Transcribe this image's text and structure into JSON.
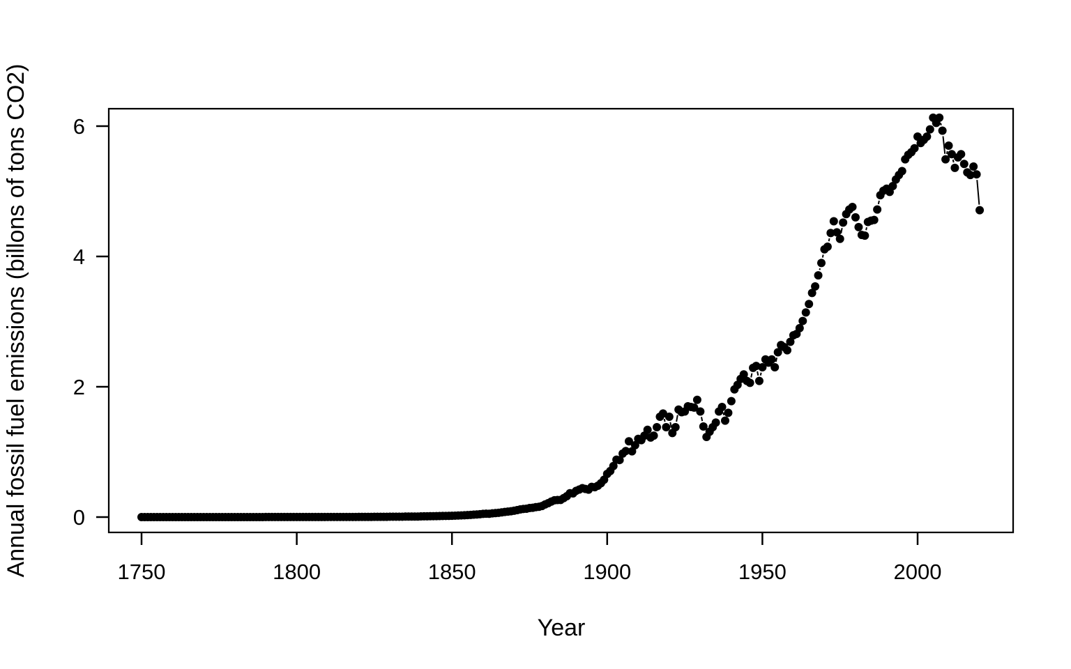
{
  "chart_data": {
    "type": "scatter",
    "style": "points-connected-b",
    "title": "",
    "xlabel": "Year",
    "ylabel": "Annual fossil fuel emissions (billons of tons CO2)",
    "x_ticks": [
      1750,
      1800,
      1850,
      1900,
      1950,
      2000
    ],
    "y_ticks": [
      0,
      2,
      4,
      6
    ],
    "xlim": [
      1739,
      2031
    ],
    "ylim": [
      -0.24,
      6.27
    ],
    "grid": false,
    "legend": "none",
    "point_color": "#000000",
    "background_color": "#ffffff",
    "x_start_year": 1750,
    "x_step": 1,
    "values": [
      0,
      0,
      0,
      0,
      0,
      0,
      0,
      0,
      0,
      0,
      0,
      0,
      0,
      0,
      0,
      0,
      0,
      0,
      0,
      0,
      0,
      0,
      0,
      0,
      0,
      0,
      0,
      0,
      0,
      0,
      0,
      0,
      0,
      0,
      0,
      0,
      0,
      0,
      0,
      0,
      0.001,
      0.001,
      0.001,
      0.001,
      0.001,
      0.001,
      0.001,
      0.001,
      0.001,
      0.001,
      0.001,
      0.001,
      0.001,
      0.001,
      0.001,
      0.001,
      0.001,
      0.001,
      0.001,
      0.001,
      0.002,
      0.002,
      0.002,
      0.002,
      0.002,
      0.002,
      0.002,
      0.002,
      0.002,
      0.002,
      0.003,
      0.003,
      0.003,
      0.003,
      0.003,
      0.004,
      0.004,
      0.004,
      0.004,
      0.004,
      0.006,
      0.006,
      0.006,
      0.006,
      0.006,
      0.008,
      0.008,
      0.008,
      0.008,
      0.008,
      0.011,
      0.012,
      0.012,
      0.013,
      0.014,
      0.015,
      0.016,
      0.017,
      0.018,
      0.019,
      0.02,
      0.022,
      0.024,
      0.026,
      0.028,
      0.031,
      0.034,
      0.037,
      0.04,
      0.044,
      0.049,
      0.052,
      0.051,
      0.057,
      0.061,
      0.066,
      0.072,
      0.079,
      0.084,
      0.09,
      0.098,
      0.107,
      0.118,
      0.125,
      0.128,
      0.139,
      0.143,
      0.152,
      0.158,
      0.17,
      0.194,
      0.214,
      0.238,
      0.258,
      0.262,
      0.263,
      0.291,
      0.321,
      0.366,
      0.363,
      0.403,
      0.422,
      0.444,
      0.432,
      0.421,
      0.464,
      0.459,
      0.481,
      0.52,
      0.574,
      0.663,
      0.707,
      0.784,
      0.881,
      0.875,
      0.975,
      1.014,
      1.163,
      1.009,
      1.103,
      1.2,
      1.18,
      1.25,
      1.34,
      1.22,
      1.25,
      1.38,
      1.54,
      1.59,
      1.38,
      1.54,
      1.29,
      1.38,
      1.65,
      1.61,
      1.62,
      1.7,
      1.69,
      1.68,
      1.8,
      1.62,
      1.39,
      1.23,
      1.31,
      1.38,
      1.45,
      1.62,
      1.69,
      1.48,
      1.6,
      1.78,
      1.96,
      2.03,
      2.12,
      2.19,
      2.09,
      2.06,
      2.29,
      2.32,
      2.09,
      2.3,
      2.42,
      2.37,
      2.42,
      2.3,
      2.53,
      2.64,
      2.61,
      2.56,
      2.69,
      2.79,
      2.81,
      2.9,
      3.01,
      3.14,
      3.27,
      3.44,
      3.54,
      3.71,
      3.9,
      4.11,
      4.15,
      4.36,
      4.54,
      4.37,
      4.27,
      4.52,
      4.65,
      4.72,
      4.76,
      4.6,
      4.45,
      4.33,
      4.32,
      4.53,
      4.55,
      4.56,
      4.72,
      4.94,
      5.01,
      5.04,
      4.99,
      5.08,
      5.18,
      5.25,
      5.31,
      5.49,
      5.56,
      5.6,
      5.66,
      5.84,
      5.74,
      5.79,
      5.84,
      5.95,
      6.13,
      6.05,
      6.13,
      5.93,
      5.49,
      5.7,
      5.57,
      5.36,
      5.52,
      5.57,
      5.42,
      5.29,
      5.25,
      5.38,
      5.26,
      4.71
    ]
  }
}
